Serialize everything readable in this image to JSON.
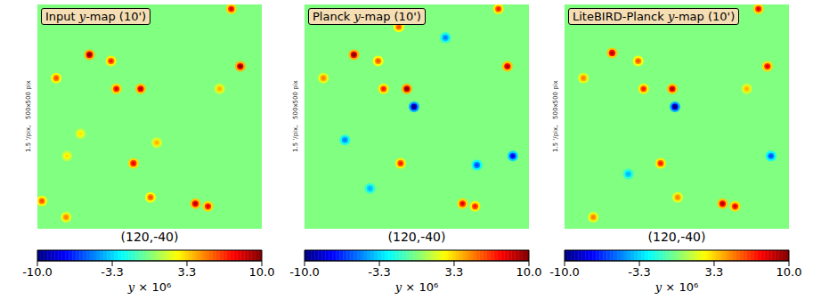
{
  "chart_data": [
    {
      "type": "heatmap",
      "title": "Input y-map (10')",
      "side_label": "1.5 '/pix,   500x500 pix",
      "center_label": "(120,-40)",
      "xlim": [
        -6.25,
        6.25
      ],
      "ylim": [
        -6.25,
        6.25
      ],
      "tick_labels": false,
      "background": 0,
      "sources": [
        {
          "x": -3.35,
          "y": 3.45,
          "value": 10
        },
        {
          "x": -2.15,
          "y": 3.1,
          "value": 7
        },
        {
          "x": 5.05,
          "y": 2.8,
          "value": 10
        },
        {
          "x": -5.2,
          "y": 2.15,
          "value": 6
        },
        {
          "x": -1.85,
          "y": 1.55,
          "value": 8
        },
        {
          "x": -0.5,
          "y": 1.55,
          "value": 9
        },
        {
          "x": -0.9,
          "y": -2.6,
          "value": 8
        },
        {
          "x": 2.55,
          "y": -4.85,
          "value": 9
        },
        {
          "x": 3.25,
          "y": -5.0,
          "value": 8
        },
        {
          "x": 0.05,
          "y": -4.5,
          "value": 6
        },
        {
          "x": -4.65,
          "y": -5.6,
          "value": 5
        },
        {
          "x": 4.55,
          "y": 6.0,
          "value": 8
        },
        {
          "x": 3.9,
          "y": 1.55,
          "value": 4
        },
        {
          "x": 0.4,
          "y": -1.45,
          "value": 4
        },
        {
          "x": -4.6,
          "y": -2.2,
          "value": 3
        },
        {
          "x": -6.0,
          "y": -4.7,
          "value": 6
        },
        {
          "x": -3.85,
          "y": -0.95,
          "value": 3
        }
      ],
      "colorbar": {
        "label": "y × 10⁶",
        "range": [
          -10,
          10
        ],
        "ticks": [
          {
            "value": -10,
            "label": "-10.0"
          },
          {
            "value": -3.33,
            "label": "-3.3"
          },
          {
            "value": 3.33,
            "label": "3.3"
          },
          {
            "value": 10,
            "label": "10.0"
          }
        ]
      }
    },
    {
      "type": "heatmap",
      "title": "Planck y-map (10')",
      "side_label": "1.5 '/pix,   500x500 pix",
      "center_label": "(120,-40)",
      "xlim": [
        -6.25,
        6.25
      ],
      "ylim": [
        -6.25,
        6.25
      ],
      "tick_labels": false,
      "background": 0,
      "sources": [
        {
          "x": -3.5,
          "y": 3.45,
          "value": 10
        },
        {
          "x": -2.15,
          "y": 3.1,
          "value": 6
        },
        {
          "x": 5.05,
          "y": 2.8,
          "value": 9
        },
        {
          "x": -5.2,
          "y": 2.15,
          "value": 5
        },
        {
          "x": -1.85,
          "y": 1.55,
          "value": 7
        },
        {
          "x": -0.55,
          "y": 1.55,
          "value": 10
        },
        {
          "x": -0.15,
          "y": 0.55,
          "value": -10
        },
        {
          "x": 5.35,
          "y": -2.2,
          "value": -8
        },
        {
          "x": 3.35,
          "y": -2.7,
          "value": -6
        },
        {
          "x": -0.9,
          "y": -2.6,
          "value": 7
        },
        {
          "x": 2.55,
          "y": -4.85,
          "value": 8
        },
        {
          "x": 3.25,
          "y": -5.0,
          "value": 7
        },
        {
          "x": -4.0,
          "y": -1.3,
          "value": -5
        },
        {
          "x": 1.6,
          "y": 4.4,
          "value": -5
        },
        {
          "x": -2.6,
          "y": -4.0,
          "value": -4
        },
        {
          "x": 4.55,
          "y": 6.0,
          "value": 7
        },
        {
          "x": -1.0,
          "y": 5.0,
          "value": 6
        }
      ]
    },
    {
      "type": "heatmap",
      "title": "LiteBIRD-Planck y-map (10')",
      "side_label": "1.5 '/pix,   500x500 pix",
      "center_label": "(120,-40)",
      "xlim": [
        -6.25,
        6.25
      ],
      "ylim": [
        -6.25,
        6.25
      ],
      "tick_labels": false,
      "background": 0,
      "sources": [
        {
          "x": -3.6,
          "y": 3.55,
          "value": 9
        },
        {
          "x": -2.15,
          "y": 3.1,
          "value": 6
        },
        {
          "x": 5.05,
          "y": 2.8,
          "value": 8
        },
        {
          "x": -5.2,
          "y": 2.15,
          "value": 5
        },
        {
          "x": -1.85,
          "y": 1.55,
          "value": 7
        },
        {
          "x": -0.25,
          "y": 1.55,
          "value": 9
        },
        {
          "x": -0.1,
          "y": 0.55,
          "value": -10
        },
        {
          "x": 5.25,
          "y": -2.2,
          "value": -6
        },
        {
          "x": -0.9,
          "y": -2.6,
          "value": 7
        },
        {
          "x": 2.55,
          "y": -4.85,
          "value": 9
        },
        {
          "x": 3.25,
          "y": -5.0,
          "value": 8
        },
        {
          "x": 0.05,
          "y": -4.5,
          "value": 5
        },
        {
          "x": 4.55,
          "y": 6.0,
          "value": 8
        },
        {
          "x": 3.9,
          "y": 1.55,
          "value": 4
        },
        {
          "x": -4.65,
          "y": -5.6,
          "value": 5
        },
        {
          "x": -2.7,
          "y": -3.2,
          "value": -4
        }
      ]
    }
  ]
}
